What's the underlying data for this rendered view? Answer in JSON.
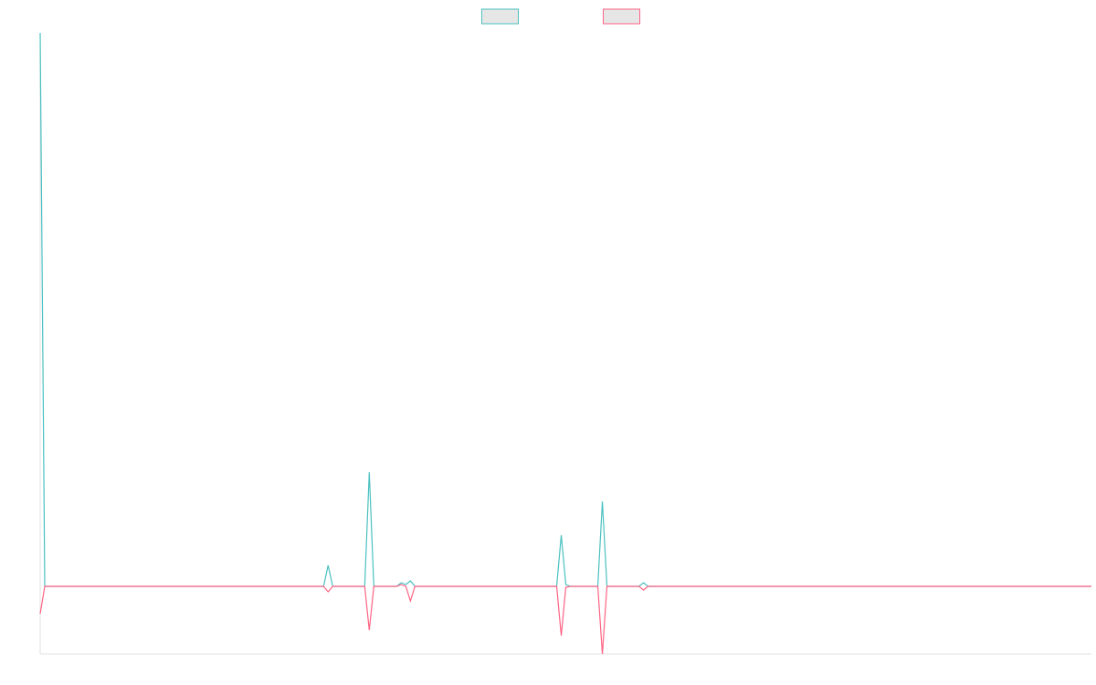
{
  "chart_data": {
    "type": "line",
    "x": [
      0,
      1,
      62,
      63,
      64,
      71,
      72,
      73,
      78,
      79,
      80,
      81,
      82,
      113,
      114,
      115,
      116,
      122,
      123,
      124,
      131,
      132,
      133,
      230
    ],
    "xlim": [
      0,
      230
    ],
    "ylim": [
      -74,
      606
    ],
    "grid": false,
    "legend": "top",
    "series": [
      {
        "color": "#4bc0c0",
        "values": [
          606,
          0,
          0,
          23,
          0,
          0,
          125,
          0,
          0,
          4,
          2,
          6,
          0,
          0,
          56,
          2,
          0,
          0,
          93,
          0,
          0,
          4,
          0,
          0
        ]
      },
      {
        "color": "#ff6384",
        "values": [
          -30,
          0,
          0,
          -6,
          0,
          0,
          -48,
          0,
          0,
          2,
          0,
          -16,
          0,
          0,
          -54,
          -1,
          0,
          0,
          -74,
          0,
          0,
          -4,
          0,
          0
        ]
      }
    ]
  }
}
